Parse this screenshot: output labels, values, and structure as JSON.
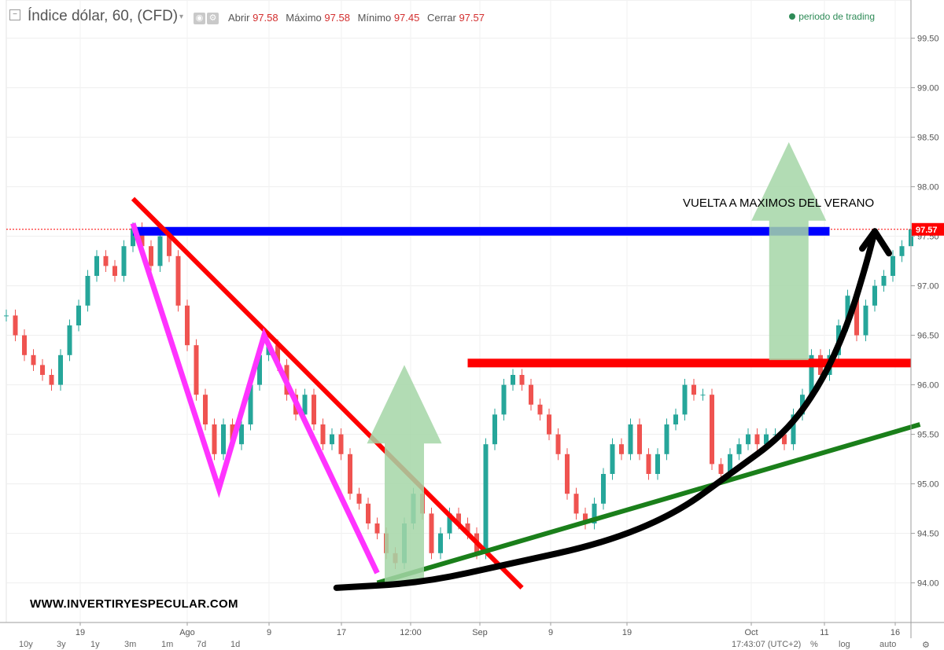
{
  "header": {
    "title": "Índice dólar, 60, (CFD)",
    "ohlc": [
      {
        "label": "Abrir",
        "value": "97.58"
      },
      {
        "label": "Máximo",
        "value": "97.58"
      },
      {
        "label": "Mínimo",
        "value": "97.45"
      },
      {
        "label": "Cerrar",
        "value": "97.57"
      }
    ],
    "legend": "periodo de trading"
  },
  "watermark": "WWW.INVERTIRYESPECULAR.COM",
  "annotation": "VUELTA A MAXIMOS DEL VERANO",
  "bottombar": {
    "ranges": [
      "10y",
      "3y",
      "1y",
      "3m",
      "1m",
      "7d",
      "1d"
    ],
    "clock": "17:43:07 (UTC+2)",
    "percent": "%",
    "log": "log",
    "auto": "auto"
  },
  "colors": {
    "up": "#26a69a",
    "down": "#ef5350",
    "resistance_blue": "#0000ff",
    "support_red": "#ff0000",
    "trendline_red": "#ff0000",
    "zigzag": "#ff33ff",
    "uptrend_green": "#1a7f1a",
    "arrow_green": "#a5d6a7",
    "curve_black": "#000000",
    "price_badge": "#ff0000"
  },
  "chart_data": {
    "type": "line",
    "title": "Índice dólar, 60, (CFD)",
    "xlabel": "",
    "ylabel": "",
    "ylim": [
      93.6,
      99.6
    ],
    "y_ticks": [
      "99.50",
      "99.00",
      "98.50",
      "98.00",
      "97.50",
      "97.00",
      "96.50",
      "96.00",
      "95.50",
      "95.00",
      "94.50",
      "94.00"
    ],
    "x_ticks": [
      "19",
      "Ago",
      "9",
      "17",
      "12:00",
      "Sep",
      "9",
      "19",
      "Oct",
      "11",
      "16"
    ],
    "last_price": "97.57",
    "x_index_range": [
      0,
      100
    ],
    "series": [
      {
        "values": [
          96.7,
          96.5,
          96.3,
          96.2,
          96.1,
          96.0,
          96.3,
          96.6,
          96.8,
          97.1,
          97.3,
          97.2,
          97.1,
          97.4,
          97.58,
          97.4,
          97.2,
          97.5,
          97.3,
          96.8,
          96.4,
          95.9,
          95.6,
          95.3,
          95.6,
          95.4,
          95.6,
          96.0,
          96.3,
          96.4,
          96.2,
          95.9,
          95.7,
          95.9,
          95.6,
          95.4,
          95.5,
          95.3,
          94.9,
          94.8,
          94.6,
          94.5,
          94.3,
          94.2,
          94.6,
          94.9,
          94.7,
          94.3,
          94.5,
          94.7,
          94.6,
          94.5,
          94.3,
          95.4,
          95.7,
          96.0,
          96.1,
          96.0,
          95.8,
          95.7,
          95.5,
          95.3,
          94.9,
          94.7,
          94.6,
          94.8,
          95.1,
          95.4,
          95.3,
          95.6,
          95.3,
          95.1,
          95.3,
          95.6,
          95.7,
          96.0,
          95.9,
          95.9,
          95.2,
          95.1,
          95.3,
          95.4,
          95.5,
          95.4,
          95.5,
          95.5,
          95.4,
          95.7,
          95.9,
          96.3,
          96.1,
          96.3,
          96.6,
          96.9,
          96.5,
          96.8,
          97.0,
          97.1,
          97.3,
          97.4,
          97.57
        ]
      }
    ],
    "annotations": [
      {
        "shape": "hline",
        "y": 97.55,
        "x_range": [
          14,
          91
        ],
        "color": "blue"
      },
      {
        "shape": "hline",
        "y": 96.22,
        "x_range": [
          51,
          100
        ],
        "color": "red"
      },
      {
        "shape": "segment",
        "points": [
          [
            14,
            97.88
          ],
          [
            57,
            93.95
          ]
        ],
        "color": "red"
      },
      {
        "shape": "polyline",
        "points": [
          [
            14,
            97.63
          ],
          [
            23.5,
            94.95
          ],
          [
            28.5,
            96.5
          ],
          [
            41,
            94.1
          ]
        ],
        "color": "magenta"
      },
      {
        "shape": "segment",
        "points": [
          [
            41,
            94.0
          ],
          [
            101,
            95.6
          ]
        ],
        "color": "green"
      },
      {
        "shape": "arrow",
        "x": 44,
        "from": 94.0,
        "to": 96.2,
        "color": "lightgreen"
      },
      {
        "shape": "arrow",
        "x": 86.5,
        "from": 96.25,
        "to": 98.45,
        "color": "lightgreen"
      },
      {
        "shape": "curve",
        "points": [
          [
            36.5,
            93.95
          ],
          [
            46,
            94.0
          ],
          [
            56,
            94.2
          ],
          [
            66,
            94.4
          ],
          [
            74,
            94.7
          ],
          [
            80,
            95.1
          ],
          [
            86,
            95.5
          ],
          [
            90,
            96.0
          ],
          [
            93,
            96.6
          ],
          [
            95,
            97.2
          ],
          [
            96,
            97.55
          ]
        ],
        "color": "black"
      }
    ]
  }
}
